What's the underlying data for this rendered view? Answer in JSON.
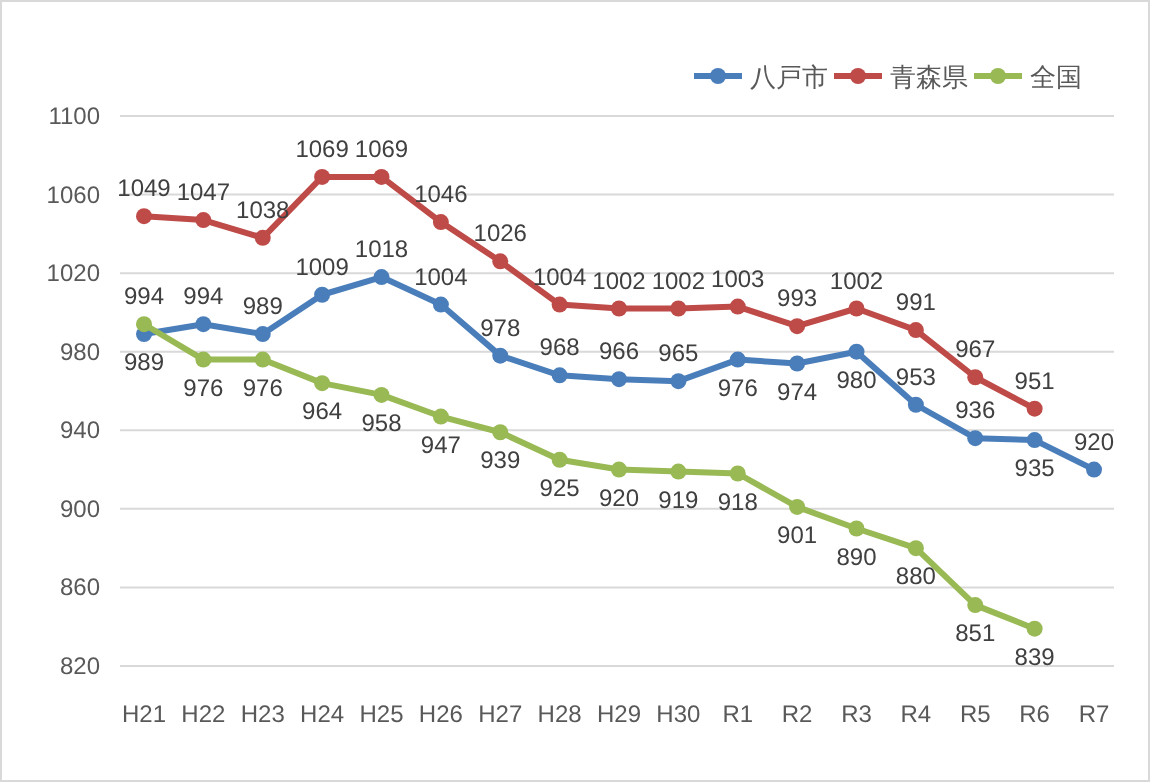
{
  "chart_data": {
    "type": "line",
    "categories": [
      "H21",
      "H22",
      "H23",
      "H24",
      "H25",
      "H26",
      "H27",
      "H28",
      "H29",
      "H30",
      "R1",
      "R2",
      "R3",
      "R4",
      "R5",
      "R6",
      "R7"
    ],
    "series": [
      {
        "name": "八戸市",
        "color": "#4a7ebb",
        "values": [
          989,
          994,
          989,
          1009,
          1018,
          1004,
          978,
          968,
          966,
          965,
          976,
          974,
          980,
          953,
          936,
          935,
          920
        ]
      },
      {
        "name": "青森県",
        "color": "#be4b48",
        "values": [
          1049,
          1047,
          1038,
          1069,
          1069,
          1046,
          1026,
          1004,
          1002,
          1002,
          1003,
          993,
          1002,
          991,
          967,
          951,
          null
        ]
      },
      {
        "name": "全国",
        "color": "#98b954",
        "values": [
          994,
          976,
          976,
          964,
          958,
          947,
          939,
          925,
          920,
          919,
          918,
          901,
          890,
          880,
          851,
          839,
          null
        ]
      }
    ],
    "ylim": [
      820,
      1100
    ],
    "yticks": [
      820,
      860,
      900,
      940,
      980,
      1020,
      1060,
      1100
    ],
    "grid": "y",
    "legend": "top right",
    "marker": "circle",
    "line_style": "solid",
    "data_labels": true
  }
}
